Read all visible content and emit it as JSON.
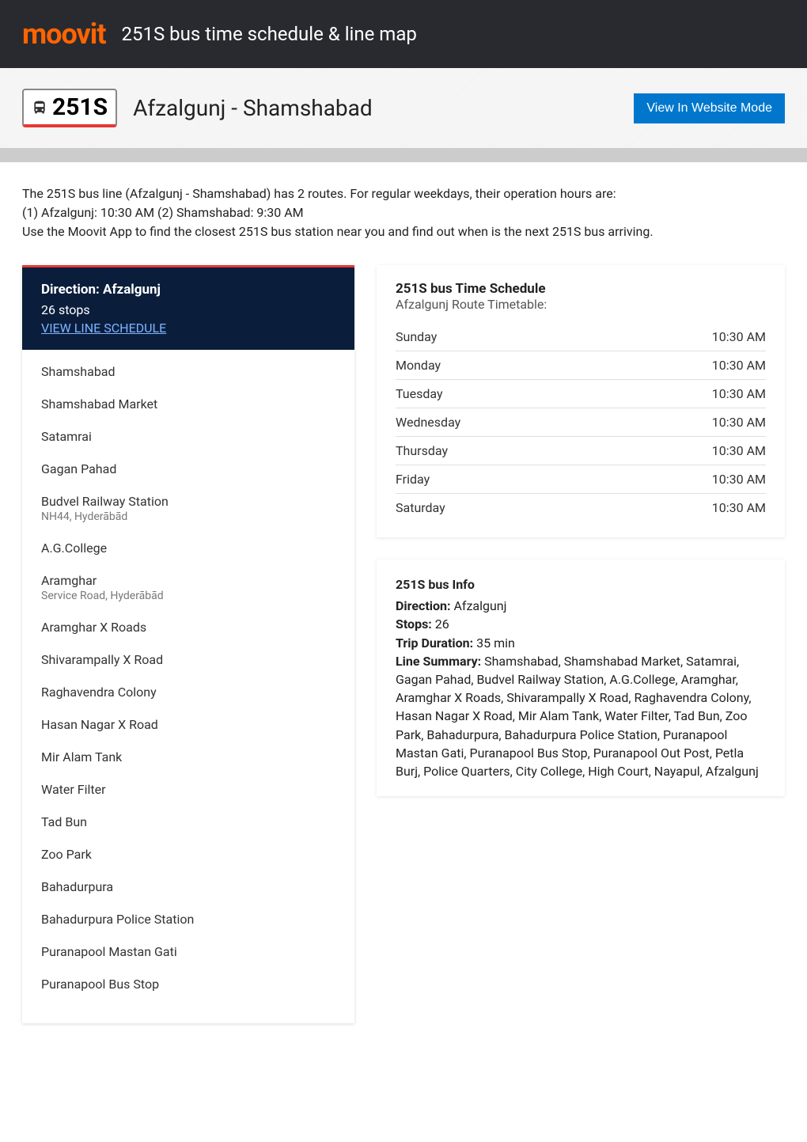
{
  "header": {
    "logo_text": "moovit",
    "title": "251S bus time schedule & line map"
  },
  "subheader": {
    "line_number": "251S",
    "route_name": "Afzalgunj - Shamshabad",
    "view_button": "View In Website Mode"
  },
  "colors": {
    "brand_orange": "#ff6400",
    "header_bg": "#292a30",
    "accent_red": "#e53935",
    "dark_blue": "#0a1e3c",
    "link_blue": "#7fb3ff",
    "button_blue": "#0077cc"
  },
  "description": {
    "line1": "The 251S bus line (Afzalgunj - Shamshabad) has 2 routes. For regular weekdays, their operation hours are:",
    "line2": "(1) Afzalgunj: 10:30 AM (2) Shamshabad: 9:30 AM",
    "line3": "Use the Moovit App to find the closest 251S bus station near you and find out when is the next 251S bus arriving."
  },
  "direction": {
    "title": "Direction: Afzalgunj",
    "stops_count": "26 stops",
    "view_link": "VIEW LINE SCHEDULE"
  },
  "stops": [
    {
      "name": "Shamshabad",
      "address": ""
    },
    {
      "name": "Shamshabad Market",
      "address": ""
    },
    {
      "name": "Satamrai",
      "address": ""
    },
    {
      "name": "Gagan Pahad",
      "address": ""
    },
    {
      "name": "Budvel Railway Station",
      "address": "NH44, Hyderābād"
    },
    {
      "name": "A.G.College",
      "address": ""
    },
    {
      "name": "Aramghar",
      "address": "Service Road, Hyderābād"
    },
    {
      "name": "Aramghar X Roads",
      "address": ""
    },
    {
      "name": "Shivarampally X Road",
      "address": ""
    },
    {
      "name": "Raghavendra Colony",
      "address": ""
    },
    {
      "name": "Hasan Nagar X Road",
      "address": ""
    },
    {
      "name": "Mir Alam Tank",
      "address": ""
    },
    {
      "name": "Water Filter",
      "address": ""
    },
    {
      "name": "Tad Bun",
      "address": ""
    },
    {
      "name": "Zoo Park",
      "address": ""
    },
    {
      "name": "Bahadurpura",
      "address": ""
    },
    {
      "name": "Bahadurpura Police Station",
      "address": ""
    },
    {
      "name": "Puranapool Mastan Gati",
      "address": ""
    },
    {
      "name": "Puranapool Bus Stop",
      "address": ""
    }
  ],
  "schedule": {
    "title": "251S bus Time Schedule",
    "subtitle": "Afzalgunj Route Timetable:",
    "rows": [
      {
        "day": "Sunday",
        "time": "10:30 AM"
      },
      {
        "day": "Monday",
        "time": "10:30 AM"
      },
      {
        "day": "Tuesday",
        "time": "10:30 AM"
      },
      {
        "day": "Wednesday",
        "time": "10:30 AM"
      },
      {
        "day": "Thursday",
        "time": "10:30 AM"
      },
      {
        "day": "Friday",
        "time": "10:30 AM"
      },
      {
        "day": "Saturday",
        "time": "10:30 AM"
      }
    ]
  },
  "info": {
    "title": "251S bus Info",
    "direction_label": "Direction:",
    "direction_value": " Afzalgunj",
    "stops_label": "Stops:",
    "stops_value": " 26",
    "duration_label": "Trip Duration:",
    "duration_value": " 35 min",
    "summary_label": "Line Summary:",
    "summary_value": " Shamshabad, Shamshabad Market, Satamrai, Gagan Pahad, Budvel Railway Station, A.G.College, Aramghar, Aramghar X Roads, Shivarampally X Road, Raghavendra Colony, Hasan Nagar X Road, Mir Alam Tank, Water Filter, Tad Bun, Zoo Park, Bahadurpura, Bahadurpura Police Station, Puranapool Mastan Gati, Puranapool Bus Stop, Puranapool Out Post, Petla Burj, Police Quarters, City College, High Court, Nayapul, Afzalgunj"
  }
}
